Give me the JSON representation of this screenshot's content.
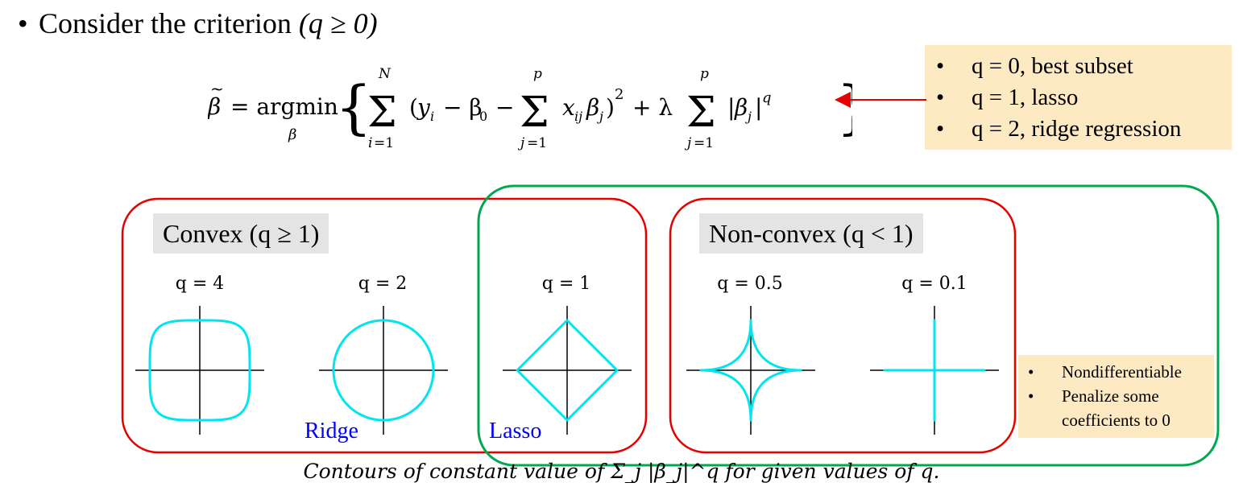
{
  "header": {
    "bullet_glyph": "•",
    "lead_text": "Consider the criterion ",
    "condition": "(q ≥ 0)"
  },
  "formula": {
    "text": "β̃ = argmin_β { Σ_{i=1}^{N} (y_i − β_0 − Σ_{j=1}^{p} x_{ij} β_j)^2 + λ Σ_{j=1}^{p} |β_j|^q }"
  },
  "q_notes": [
    "q = 0, best subset",
    "q = 1, lasso",
    "q = 2, ridge regression"
  ],
  "groups": {
    "convex_label": "Convex (q ≥ 1)",
    "nonconvex_label": "Non-convex (q < 1)"
  },
  "plots": [
    {
      "label": "q = 4",
      "q": 4
    },
    {
      "label": "q = 2",
      "q": 2
    },
    {
      "label": "q = 1",
      "q": 1
    },
    {
      "label": "q = 0.5",
      "q": 0.5
    },
    {
      "label": "q = 0.1",
      "q": 0.1
    }
  ],
  "method_labels": {
    "ridge": "Ridge",
    "lasso": "Lasso"
  },
  "lasso_notes": [
    "Nondifferentiable",
    "Penalize some coefficients to 0"
  ],
  "caption": "Contours of constant value of Σ_j |β_j|^q for given values of q.",
  "colors": {
    "contour": "#00e5ee",
    "convex_box": "#e60000",
    "lasso_box": "#00a850",
    "arrow": "#e60000",
    "method_text": "#0000ff",
    "note_bg": "#fde9c2",
    "label_bg": "#e4e4e4"
  }
}
